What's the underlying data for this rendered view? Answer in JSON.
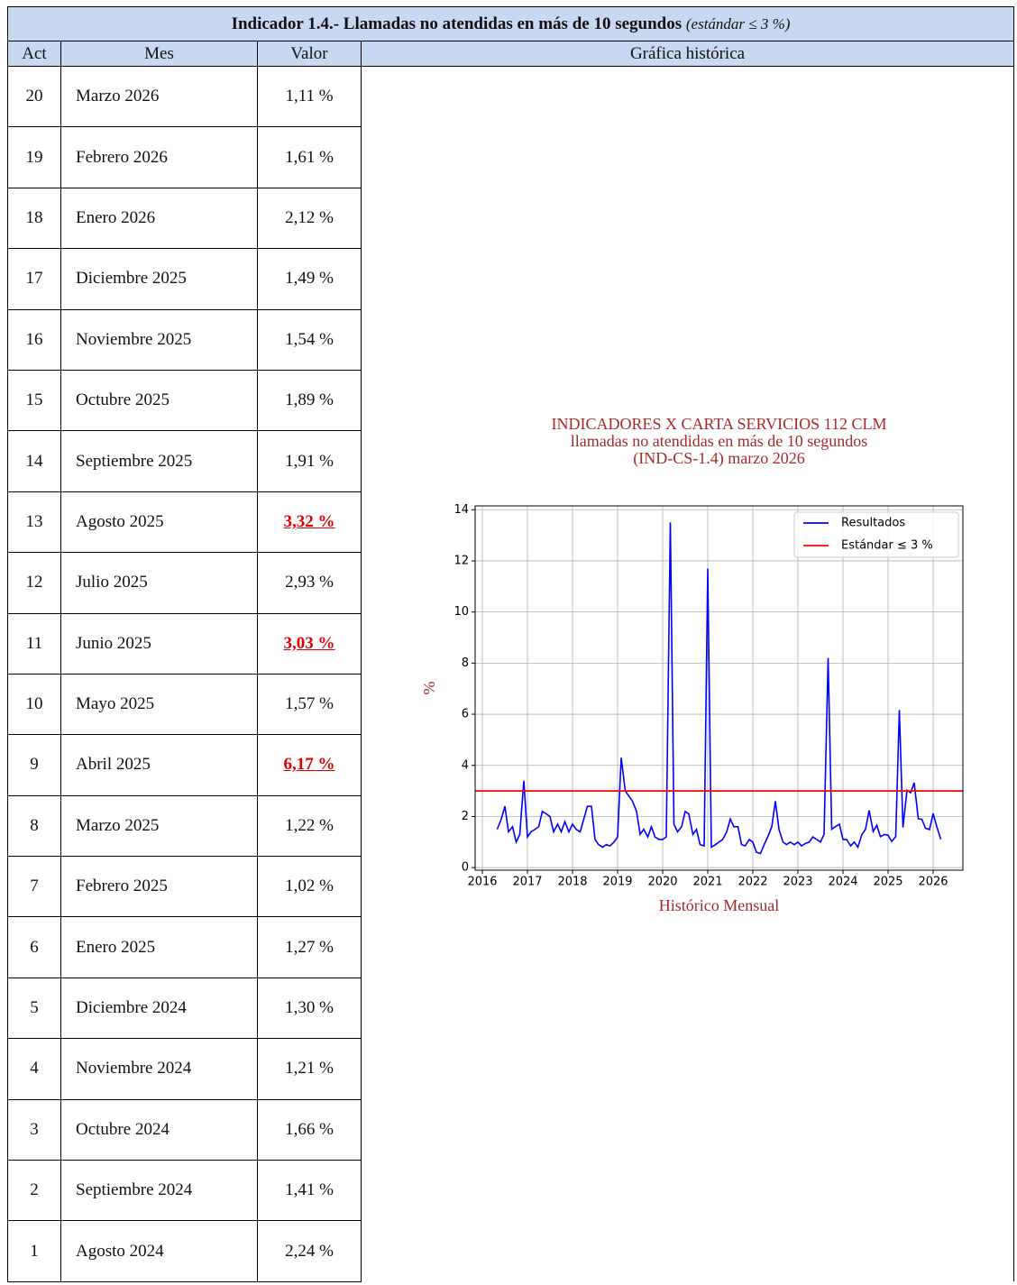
{
  "header": {
    "title": "Indicador 1.4.- Llamadas no atendidas en más de 10 segundos",
    "note": "(estándar ≤ 3 %)"
  },
  "table": {
    "columns": [
      "Act",
      "Mes",
      "Valor",
      "Gráfica histórica"
    ],
    "rows": [
      [
        20,
        "Marzo 2026",
        "1,11 %"
      ],
      [
        19,
        "Febrero 2026",
        "1,61 %"
      ],
      [
        18,
        "Enero 2026",
        "2,12 %"
      ],
      [
        17,
        "Diciembre 2025",
        "1,49 %"
      ],
      [
        16,
        "Noviembre 2025",
        "1,54 %"
      ],
      [
        15,
        "Octubre 2025",
        "1,89 %"
      ],
      [
        14,
        "Septiembre 2025",
        "1,91 %"
      ],
      [
        13,
        "Agosto 2025",
        "3,32 %"
      ],
      [
        12,
        "Julio 2025",
        "2,93 %"
      ],
      [
        11,
        "Junio 2025",
        "3,03 %"
      ],
      [
        10,
        "Mayo 2025",
        "1,57 %"
      ],
      [
        9,
        "Abril 2025",
        "6,17 %"
      ],
      [
        8,
        "Marzo 2025",
        "1,22 %"
      ],
      [
        7,
        "Febrero 2025",
        "1,02 %"
      ],
      [
        6,
        "Enero 2025",
        "1,27 %"
      ],
      [
        5,
        "Diciembre 2024",
        "1,30 %"
      ],
      [
        4,
        "Noviembre 2024",
        "1,21 %"
      ],
      [
        3,
        "Octubre 2024",
        "1,66 %"
      ],
      [
        2,
        "Septiembre 2024",
        "1,41 %"
      ],
      [
        1,
        "Agosto 2024",
        "2,24 %"
      ]
    ],
    "highlight": [
      false,
      false,
      false,
      false,
      false,
      false,
      false,
      true,
      false,
      true,
      false,
      true,
      false,
      false,
      false,
      false,
      false,
      false,
      false,
      false
    ],
    "highlight_color": "#e00000"
  },
  "chart_data": {
    "type": "line",
    "title": [
      "INDICADORES X CARTA SERVICIOS 112 CLM",
      "llamadas no atendidas en más de 10 segundos",
      "(IND-CS-1.4) marzo 2026"
    ],
    "x_label": "Histórico Mensual",
    "y_label": "%",
    "x": [
      2016.33,
      2016.42,
      2016.5,
      2016.58,
      2016.67,
      2016.75,
      2016.83,
      2016.92,
      2017,
      2017.08,
      2017.17,
      2017.25,
      2017.33,
      2017.42,
      2017.5,
      2017.58,
      2017.67,
      2017.75,
      2017.83,
      2017.92,
      2018,
      2018.08,
      2018.17,
      2018.25,
      2018.33,
      2018.42,
      2018.5,
      2018.58,
      2018.67,
      2018.75,
      2018.83,
      2018.92,
      2019,
      2019.08,
      2019.17,
      2019.25,
      2019.33,
      2019.42,
      2019.5,
      2019.58,
      2019.67,
      2019.75,
      2019.83,
      2019.92,
      2020,
      2020.08,
      2020.17,
      2020.25,
      2020.33,
      2020.42,
      2020.5,
      2020.58,
      2020.67,
      2020.75,
      2020.83,
      2020.92,
      2021,
      2021.08,
      2021.17,
      2021.25,
      2021.33,
      2021.42,
      2021.5,
      2021.58,
      2021.67,
      2021.75,
      2021.83,
      2021.92,
      2022,
      2022.08,
      2022.17,
      2022.25,
      2022.33,
      2022.42,
      2022.5,
      2022.58,
      2022.67,
      2022.75,
      2022.83,
      2022.92,
      2023,
      2023.08,
      2023.17,
      2023.25,
      2023.33,
      2023.42,
      2023.5,
      2023.58,
      2023.67,
      2023.75,
      2023.83,
      2023.92,
      2024,
      2024.08,
      2024.17,
      2024.25,
      2024.33,
      2024.42,
      2024.5,
      2024.58,
      2024.67,
      2024.75,
      2024.83,
      2024.92,
      2025,
      2025.08,
      2025.17,
      2025.25,
      2025.33,
      2025.42,
      2025.5,
      2025.58,
      2025.67,
      2025.75,
      2025.83,
      2025.92,
      2026,
      2026.08,
      2026.17
    ],
    "series": [
      {
        "name": "Resultados",
        "color": "#0000ff",
        "values": [
          1.5,
          1.9,
          2.4,
          1.4,
          1.6,
          1.0,
          1.3,
          3.4,
          1.2,
          1.4,
          1.5,
          1.6,
          2.2,
          2.1,
          2.0,
          1.4,
          1.7,
          1.4,
          1.8,
          1.4,
          1.7,
          1.5,
          1.4,
          1.9,
          2.4,
          2.4,
          1.1,
          0.9,
          0.8,
          0.9,
          0.85,
          1.0,
          1.2,
          4.3,
          3.0,
          2.8,
          2.6,
          2.2,
          1.3,
          1.5,
          1.2,
          1.6,
          1.2,
          1.1,
          1.1,
          1.2,
          13.5,
          1.7,
          1.4,
          1.6,
          2.2,
          2.1,
          1.3,
          1.5,
          0.9,
          0.85,
          11.7,
          0.8,
          0.9,
          1.0,
          1.1,
          1.4,
          1.9,
          1.6,
          1.6,
          0.9,
          0.85,
          1.1,
          1.0,
          0.6,
          0.55,
          0.9,
          1.2,
          1.6,
          2.6,
          1.5,
          1.0,
          0.9,
          1.0,
          0.9,
          1.0,
          0.85,
          0.95,
          1.0,
          1.2,
          1.1,
          1.0,
          1.3,
          8.2,
          1.5,
          1.6,
          1.7,
          1.1,
          1.1,
          0.85,
          1.0,
          0.8,
          1.3,
          1.5,
          2.24,
          1.41,
          1.66,
          1.21,
          1.3,
          1.27,
          1.02,
          1.22,
          6.17,
          1.57,
          3.03,
          2.93,
          3.32,
          1.91,
          1.89,
          1.54,
          1.49,
          2.12,
          1.61,
          1.11
        ]
      }
    ],
    "reference_line": {
      "name": "Estándar ≤ 3 %",
      "value": 3,
      "color": "#ff0000"
    },
    "xlim": [
      2015.84,
      2026.66
    ],
    "xticks": [
      2016,
      2017,
      2018,
      2019,
      2020,
      2021,
      2022,
      2023,
      2024,
      2025,
      2026
    ],
    "ylim": [
      -0.1,
      14.15
    ],
    "yticks": [
      0,
      2,
      4,
      6,
      8,
      10,
      12,
      14
    ],
    "grid": true,
    "legend": "upper right"
  }
}
